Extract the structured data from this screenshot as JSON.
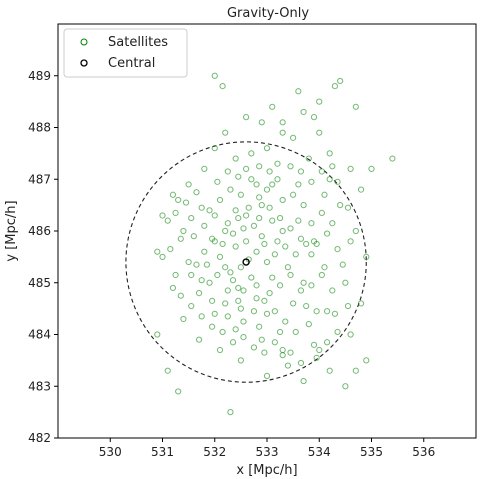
{
  "chart_data": {
    "type": "scatter",
    "title": "Gravity-Only",
    "xlabel": "x [Mpc/h]",
    "ylabel": "y [Mpc/h]",
    "xlim": [
      529.0,
      537.0
    ],
    "ylim": [
      482.0,
      490.0
    ],
    "xticks": [
      530,
      531,
      532,
      533,
      534,
      535,
      536
    ],
    "yticks": [
      482,
      483,
      484,
      485,
      486,
      487,
      488,
      489
    ],
    "grid": false,
    "legend_position": "top-left",
    "colors": {
      "satellites": "#008000",
      "central": "#000000",
      "circle": "#222222"
    },
    "central": {
      "name": "Central",
      "x": 532.6,
      "y": 485.4
    },
    "circle": {
      "center_x": 532.6,
      "center_y": 485.4,
      "radius": 2.3
    },
    "satellites": {
      "name": "Satellites",
      "points": [
        [
          532.65,
          485.45
        ],
        [
          532.5,
          485.3
        ],
        [
          532.8,
          485.6
        ],
        [
          532.4,
          485.7
        ],
        [
          532.7,
          485.1
        ],
        [
          532.9,
          485.9
        ],
        [
          532.3,
          485.2
        ],
        [
          532.6,
          485.8
        ],
        [
          532.2,
          486.0
        ],
        [
          533.0,
          485.4
        ],
        [
          532.75,
          486.1
        ],
        [
          532.45,
          484.9
        ],
        [
          533.1,
          486.2
        ],
        [
          532.9,
          486.5
        ],
        [
          532.6,
          486.3
        ],
        [
          533.2,
          485.8
        ],
        [
          532.1,
          485.5
        ],
        [
          532.4,
          486.4
        ],
        [
          533.0,
          486.8
        ],
        [
          533.3,
          486.0
        ],
        [
          532.0,
          486.3
        ],
        [
          532.8,
          484.7
        ],
        [
          532.5,
          484.5
        ],
        [
          533.1,
          485.1
        ],
        [
          531.9,
          485.0
        ],
        [
          533.4,
          485.3
        ],
        [
          532.2,
          484.6
        ],
        [
          533.0,
          484.4
        ],
        [
          532.7,
          487.0
        ],
        [
          533.2,
          487.3
        ],
        [
          533.5,
          486.7
        ],
        [
          533.6,
          486.2
        ],
        [
          533.9,
          485.8
        ],
        [
          534.1,
          485.3
        ],
        [
          533.7,
          485.0
        ],
        [
          533.5,
          484.6
        ],
        [
          533.8,
          484.2
        ],
        [
          533.9,
          483.8
        ],
        [
          533.3,
          483.6
        ],
        [
          532.9,
          483.9
        ],
        [
          532.4,
          484.1
        ],
        [
          532.0,
          484.4
        ],
        [
          531.7,
          484.8
        ],
        [
          531.5,
          485.4
        ],
        [
          531.4,
          486.0
        ],
        [
          531.3,
          486.6
        ],
        [
          531.2,
          486.7
        ],
        [
          531.1,
          486.2
        ],
        [
          531.0,
          485.5
        ],
        [
          531.2,
          484.9
        ],
        [
          531.4,
          484.3
        ],
        [
          531.7,
          483.9
        ],
        [
          532.1,
          483.7
        ],
        [
          532.5,
          483.5
        ],
        [
          533.0,
          483.2
        ],
        [
          533.4,
          483.4
        ],
        [
          534.0,
          483.7
        ],
        [
          534.3,
          484.4
        ],
        [
          534.5,
          485.0
        ],
        [
          534.6,
          485.8
        ],
        [
          534.4,
          486.5
        ],
        [
          534.2,
          487.0
        ],
        [
          533.8,
          487.4
        ],
        [
          533.5,
          487.8
        ],
        [
          533.3,
          488.1
        ],
        [
          533.7,
          488.3
        ],
        [
          534.0,
          488.5
        ],
        [
          534.3,
          488.8
        ],
        [
          534.4,
          488.9
        ],
        [
          534.7,
          488.4
        ],
        [
          534.0,
          487.9
        ],
        [
          533.6,
          488.7
        ],
        [
          533.9,
          488.2
        ],
        [
          534.2,
          487.5
        ],
        [
          534.6,
          487.2
        ],
        [
          534.8,
          486.8
        ],
        [
          535.0,
          487.2
        ],
        [
          535.4,
          487.4
        ],
        [
          534.7,
          486.0
        ],
        [
          534.9,
          485.5
        ],
        [
          534.8,
          484.6
        ],
        [
          534.6,
          484.0
        ],
        [
          534.9,
          483.5
        ],
        [
          534.7,
          483.3
        ],
        [
          534.5,
          483.0
        ],
        [
          534.2,
          483.3
        ],
        [
          533.7,
          483.1
        ],
        [
          533.3,
          483.7
        ],
        [
          532.3,
          482.5
        ],
        [
          531.3,
          482.9
        ],
        [
          531.1,
          483.3
        ],
        [
          530.9,
          484.0
        ],
        [
          530.9,
          485.6
        ],
        [
          531.0,
          486.3
        ],
        [
          531.5,
          486.9
        ],
        [
          531.8,
          487.2
        ],
        [
          532.0,
          487.6
        ],
        [
          532.2,
          487.9
        ],
        [
          532.4,
          487.4
        ],
        [
          532.6,
          487.2
        ],
        [
          532.7,
          487.5
        ],
        [
          533.0,
          487.6
        ],
        [
          533.3,
          487.9
        ],
        [
          533.1,
          488.4
        ],
        [
          532.9,
          488.1
        ],
        [
          532.0,
          489.0
        ],
        [
          532.15,
          488.8
        ],
        [
          532.6,
          488.2
        ],
        [
          533.2,
          487.0
        ],
        [
          533.6,
          486.9
        ],
        [
          533.7,
          486.5
        ],
        [
          534.1,
          486.7
        ],
        [
          533.3,
          486.6
        ],
        [
          533.1,
          486.9
        ],
        [
          532.8,
          486.9
        ],
        [
          532.5,
          486.7
        ],
        [
          532.3,
          486.8
        ],
        [
          532.1,
          486.6
        ],
        [
          531.9,
          486.4
        ],
        [
          531.8,
          486.1
        ],
        [
          531.6,
          485.9
        ],
        [
          531.8,
          485.6
        ],
        [
          532.0,
          485.8
        ],
        [
          532.2,
          485.3
        ],
        [
          532.35,
          485.05
        ],
        [
          532.55,
          484.85
        ],
        [
          532.8,
          484.95
        ],
        [
          533.05,
          484.8
        ],
        [
          533.25,
          484.95
        ],
        [
          533.45,
          485.15
        ],
        [
          533.55,
          485.55
        ],
        [
          533.35,
          485.7
        ],
        [
          533.15,
          485.55
        ],
        [
          532.95,
          485.75
        ],
        [
          532.85,
          486.25
        ],
        [
          532.55,
          486.05
        ],
        [
          532.35,
          485.95
        ],
        [
          532.15,
          485.75
        ],
        [
          532.05,
          485.15
        ],
        [
          532.25,
          484.85
        ],
        [
          532.45,
          484.65
        ],
        [
          532.75,
          484.45
        ],
        [
          532.95,
          484.65
        ],
        [
          533.15,
          484.45
        ],
        [
          533.35,
          484.25
        ],
        [
          533.55,
          484.05
        ],
        [
          533.25,
          484.05
        ],
        [
          532.85,
          484.15
        ],
        [
          532.55,
          484.25
        ],
        [
          532.25,
          484.35
        ],
        [
          531.95,
          484.65
        ],
        [
          531.75,
          485.05
        ],
        [
          531.55,
          485.15
        ],
        [
          531.65,
          485.35
        ],
        [
          531.85,
          485.35
        ],
        [
          531.95,
          485.85
        ],
        [
          532.25,
          486.15
        ],
        [
          532.45,
          486.25
        ],
        [
          532.65,
          486.45
        ],
        [
          532.85,
          486.65
        ],
        [
          533.05,
          486.45
        ],
        [
          533.25,
          486.25
        ],
        [
          533.45,
          486.05
        ],
        [
          533.65,
          485.85
        ],
        [
          533.85,
          485.55
        ],
        [
          534.05,
          485.15
        ],
        [
          534.25,
          484.85
        ],
        [
          534.15,
          484.45
        ],
        [
          533.95,
          484.45
        ],
        [
          533.75,
          484.55
        ],
        [
          533.65,
          484.85
        ],
        [
          533.85,
          484.95
        ],
        [
          534.35,
          485.65
        ],
        [
          534.25,
          486.15
        ],
        [
          534.05,
          486.35
        ],
        [
          533.85,
          486.15
        ],
        [
          533.75,
          485.75
        ],
        [
          533.95,
          485.75
        ],
        [
          534.15,
          485.95
        ],
        [
          534.45,
          485.35
        ],
        [
          534.55,
          484.55
        ],
        [
          534.35,
          484.05
        ],
        [
          534.15,
          483.85
        ],
        [
          533.95,
          483.55
        ],
        [
          533.65,
          483.45
        ],
        [
          533.45,
          483.65
        ],
        [
          533.15,
          483.85
        ],
        [
          532.95,
          483.65
        ],
        [
          532.75,
          483.75
        ],
        [
          532.55,
          483.95
        ],
        [
          532.35,
          483.85
        ],
        [
          532.15,
          484.05
        ],
        [
          531.95,
          484.15
        ],
        [
          531.75,
          484.35
        ],
        [
          531.55,
          484.55
        ],
        [
          531.35,
          484.75
        ],
        [
          531.25,
          485.15
        ],
        [
          531.15,
          485.65
        ],
        [
          531.35,
          485.85
        ],
        [
          531.55,
          486.25
        ],
        [
          531.75,
          486.45
        ],
        [
          531.65,
          486.75
        ],
        [
          531.45,
          486.55
        ],
        [
          531.25,
          486.35
        ],
        [
          532.05,
          486.95
        ],
        [
          532.25,
          487.15
        ],
        [
          532.45,
          487.05
        ],
        [
          532.85,
          487.25
        ],
        [
          533.05,
          487.15
        ],
        [
          533.45,
          487.25
        ],
        [
          533.65,
          487.15
        ],
        [
          533.85,
          486.95
        ],
        [
          534.05,
          487.15
        ],
        [
          534.25,
          487.25
        ],
        [
          534.35,
          486.95
        ],
        [
          534.55,
          486.45
        ]
      ]
    }
  }
}
